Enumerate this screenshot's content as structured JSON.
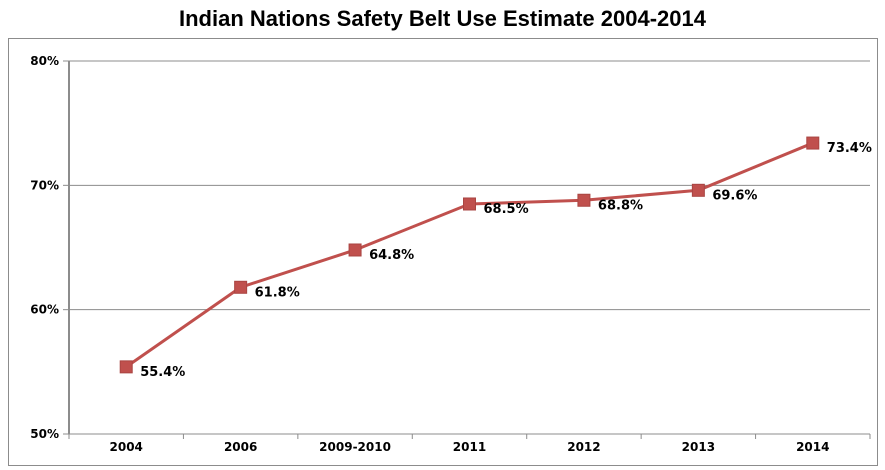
{
  "chart_data": {
    "type": "line",
    "title": "Indian Nations Safety Belt Use Estimate 2004-2014",
    "categories": [
      "2004",
      "2006",
      "2009-2010",
      "2011",
      "2012",
      "2013",
      "2014"
    ],
    "values": [
      55.4,
      61.8,
      64.8,
      68.5,
      68.8,
      69.6,
      73.4
    ],
    "data_labels": [
      "55.4%",
      "61.8%",
      "64.8%",
      "68.5%",
      "68.8%",
      "69.6%",
      "73.4%"
    ],
    "y_ticks": [
      50,
      60,
      70,
      80
    ],
    "y_tick_labels": [
      "50%",
      "60%",
      "70%",
      "80%"
    ],
    "ylim": [
      50,
      80
    ],
    "grid": true,
    "series_color": "#c0504d",
    "marker": "square"
  }
}
